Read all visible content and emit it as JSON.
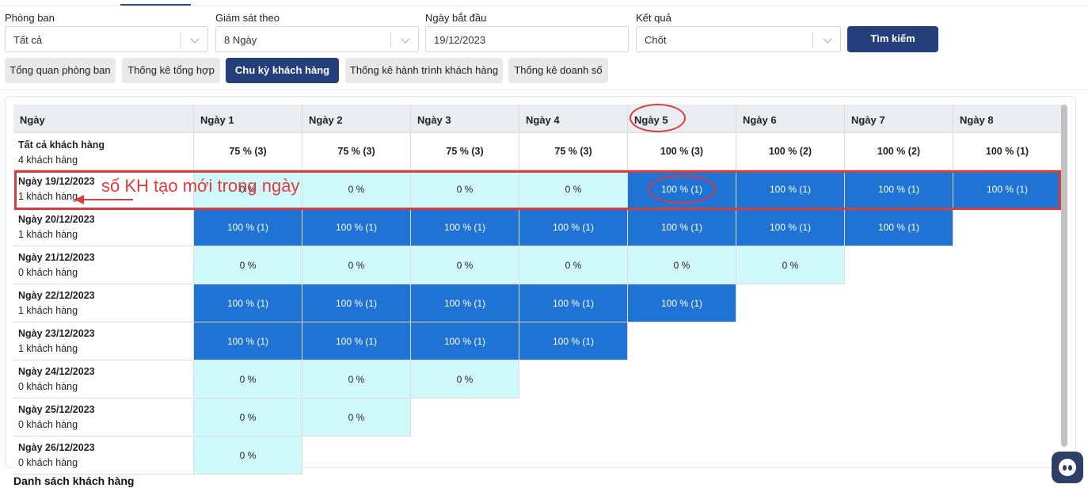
{
  "filters": {
    "department": {
      "label": "Phòng ban",
      "value": "Tất cả"
    },
    "monitor_by": {
      "label": "Giám sát theo",
      "value": "8 Ngày"
    },
    "start_date": {
      "label": "Ngày bắt đầu",
      "value": "19/12/2023"
    },
    "result": {
      "label": "Kết quả",
      "value": "Chốt"
    },
    "search_label": "Tìm kiếm"
  },
  "tabs": [
    {
      "label": "Tổng quan phòng ban",
      "active": false
    },
    {
      "label": "Thống kê tổng hợp",
      "active": false
    },
    {
      "label": "Chu kỳ khách hàng",
      "active": true
    },
    {
      "label": "Thống kê hành trình khách hàng",
      "active": false
    },
    {
      "label": "Thống kê doanh số",
      "active": false
    }
  ],
  "table": {
    "headers": [
      "Ngày",
      "Ngày 1",
      "Ngày 2",
      "Ngày 3",
      "Ngày 4",
      "Ngày 5",
      "Ngày 6",
      "Ngày 7",
      "Ngày 8"
    ],
    "total_row": {
      "label": "Tất cả khách hàng",
      "sub": "4 khách hàng",
      "cells": [
        "75 % (3)",
        "75 % (3)",
        "75 % (3)",
        "75 % (3)",
        "100 % (3)",
        "100 % (2)",
        "100 % (2)",
        "100 % (1)"
      ]
    },
    "rows": [
      {
        "date": "Ngày 19/12/2023",
        "count": "1 khách hàng",
        "cells": [
          {
            "v": "0 %",
            "t": "light"
          },
          {
            "v": "0 %",
            "t": "light"
          },
          {
            "v": "0 %",
            "t": "light"
          },
          {
            "v": "0 %",
            "t": "light"
          },
          {
            "v": "100 % (1)",
            "t": "dark"
          },
          {
            "v": "100 % (1)",
            "t": "dark"
          },
          {
            "v": "100 % (1)",
            "t": "dark"
          },
          {
            "v": "100 % (1)",
            "t": "dark"
          }
        ]
      },
      {
        "date": "Ngày 20/12/2023",
        "count": "1 khách hàng",
        "cells": [
          {
            "v": "100 % (1)",
            "t": "dark"
          },
          {
            "v": "100 % (1)",
            "t": "dark"
          },
          {
            "v": "100 % (1)",
            "t": "dark"
          },
          {
            "v": "100 % (1)",
            "t": "dark"
          },
          {
            "v": "100 % (1)",
            "t": "dark"
          },
          {
            "v": "100 % (1)",
            "t": "dark"
          },
          {
            "v": "100 % (1)",
            "t": "dark"
          }
        ]
      },
      {
        "date": "Ngày 21/12/2023",
        "count": "0 khách hàng",
        "cells": [
          {
            "v": "0 %",
            "t": "light"
          },
          {
            "v": "0 %",
            "t": "light"
          },
          {
            "v": "0 %",
            "t": "light"
          },
          {
            "v": "0 %",
            "t": "light"
          },
          {
            "v": "0 %",
            "t": "light"
          },
          {
            "v": "0 %",
            "t": "light"
          }
        ]
      },
      {
        "date": "Ngày 22/12/2023",
        "count": "1 khách hàng",
        "cells": [
          {
            "v": "100 % (1)",
            "t": "dark"
          },
          {
            "v": "100 % (1)",
            "t": "dark"
          },
          {
            "v": "100 % (1)",
            "t": "dark"
          },
          {
            "v": "100 % (1)",
            "t": "dark"
          },
          {
            "v": "100 % (1)",
            "t": "dark"
          }
        ]
      },
      {
        "date": "Ngày 23/12/2023",
        "count": "1 khách hàng",
        "cells": [
          {
            "v": "100 % (1)",
            "t": "dark"
          },
          {
            "v": "100 % (1)",
            "t": "dark"
          },
          {
            "v": "100 % (1)",
            "t": "dark"
          },
          {
            "v": "100 % (1)",
            "t": "dark"
          }
        ]
      },
      {
        "date": "Ngày 24/12/2023",
        "count": "0 khách hàng",
        "cells": [
          {
            "v": "0 %",
            "t": "light"
          },
          {
            "v": "0 %",
            "t": "light"
          },
          {
            "v": "0 %",
            "t": "light"
          }
        ]
      },
      {
        "date": "Ngày 25/12/2023",
        "count": "0 khách hàng",
        "cells": [
          {
            "v": "0 %",
            "t": "light"
          },
          {
            "v": "0 %",
            "t": "light"
          }
        ]
      },
      {
        "date": "Ngày 26/12/2023",
        "count": "0 khách hàng",
        "cells": [
          {
            "v": "0 %",
            "t": "light"
          }
        ]
      }
    ]
  },
  "annotation": {
    "text": "số KH tạo mới trong ngày"
  },
  "footer": {
    "title": "Danh sách khách hàng"
  },
  "colors": {
    "primary": "#253f7c",
    "cell_dark": "#1e73d4",
    "cell_light": "#cff9fb",
    "annotation": "#d93b3b"
  },
  "icons": {
    "dropdown": "chevron-down-icon",
    "chat": "chat-bot-icon"
  }
}
